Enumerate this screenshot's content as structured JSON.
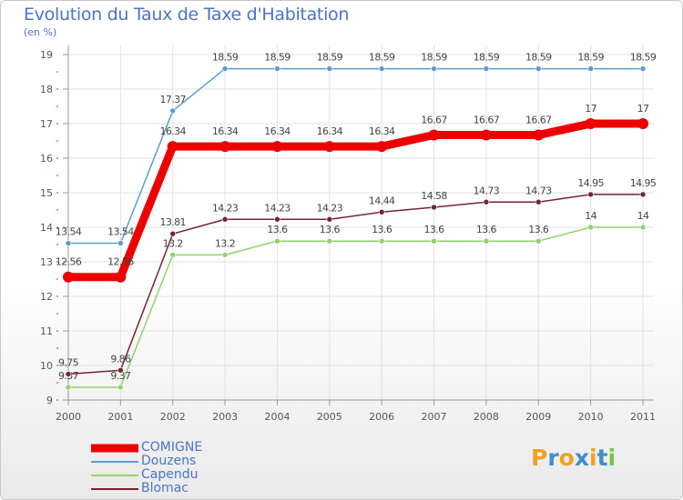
{
  "title": "Evolution du Taux de Taxe d'Habitation",
  "subtitle": "(en %)",
  "logo": {
    "text": "Proxiti",
    "letters": [
      "P",
      "r",
      "o",
      "x",
      "i",
      "t",
      "i"
    ],
    "colors": [
      "#f4a020",
      "#3a8fd0",
      "#f4a020",
      "#3a8fd0",
      "#f4a020",
      "#3a8fd0",
      "#7cc242"
    ]
  },
  "chart_data": {
    "type": "line",
    "categories": [
      "2000",
      "2001",
      "2002",
      "2003",
      "2004",
      "2005",
      "2006",
      "2007",
      "2008",
      "2009",
      "2010",
      "2011"
    ],
    "ylim": [
      9,
      19
    ],
    "yticks": [
      "9",
      "10",
      "11",
      "12",
      "13",
      "14",
      "15",
      "16",
      "17",
      "18",
      "19"
    ],
    "grid": true,
    "legend_position": "bottom-left",
    "series": [
      {
        "name": "COMIGNE",
        "color": "#ee0000",
        "values": [
          12.56,
          12.56,
          16.34,
          16.34,
          16.34,
          16.34,
          16.34,
          16.67,
          16.67,
          16.67,
          17,
          17
        ],
        "labels": [
          "12.56",
          "12.56",
          "16.34",
          "16.34",
          "16.34",
          "16.34",
          "16.34",
          "16.67",
          "16.67",
          "16.67",
          "17",
          "17"
        ]
      },
      {
        "name": "Douzens",
        "color": "#5b9bd5",
        "values": [
          13.54,
          13.54,
          17.37,
          18.59,
          18.59,
          18.59,
          18.59,
          18.59,
          18.59,
          18.59,
          18.59,
          18.59
        ],
        "labels": [
          "13.54",
          "13.54",
          "17.37",
          "18.59",
          "18.59",
          "18.59",
          "18.59",
          "18.59",
          "18.59",
          "18.59",
          "18.59",
          "18.59"
        ]
      },
      {
        "name": "Capendu",
        "color": "#8fd36a",
        "values": [
          9.37,
          9.37,
          13.2,
          13.2,
          13.6,
          13.6,
          13.6,
          13.6,
          13.6,
          13.6,
          14,
          14
        ],
        "labels": [
          "9.37",
          "9.37",
          "13.2",
          "13.2",
          "13.6",
          "13.6",
          "13.6",
          "13.6",
          "13.6",
          "13.6",
          "14",
          "14"
        ]
      },
      {
        "name": "Blomac",
        "color": "#7a2230",
        "values": [
          9.75,
          9.86,
          13.81,
          14.23,
          14.23,
          14.23,
          14.44,
          14.58,
          14.73,
          14.73,
          14.95,
          14.95
        ],
        "labels": [
          "9.75",
          "9.86",
          "13.81",
          "14.23",
          "14.23",
          "14.23",
          "14.44",
          "14.58",
          "14.73",
          "14.73",
          "14.95",
          "14.95"
        ]
      }
    ]
  }
}
